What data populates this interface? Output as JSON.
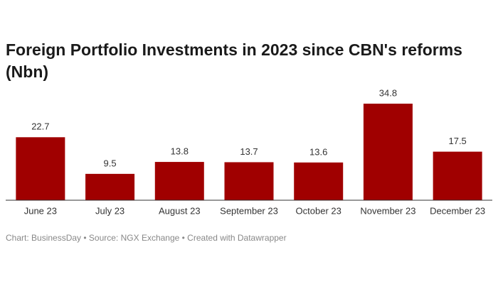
{
  "chart_data": {
    "type": "bar",
    "title": "Foreign Portfolio Investments in 2023 since CBN's reforms (Nbn)",
    "categories": [
      "June 23",
      "July 23",
      "August 23",
      "September 23",
      "October 23",
      "November 23",
      "December 23"
    ],
    "values": [
      22.7,
      9.5,
      13.8,
      13.7,
      13.6,
      34.8,
      17.5
    ],
    "color": "#a00000",
    "ylim": [
      0,
      34.8
    ],
    "source": "Chart: BusinessDay • Source: NGX Exchange • Created with Datawrapper"
  }
}
